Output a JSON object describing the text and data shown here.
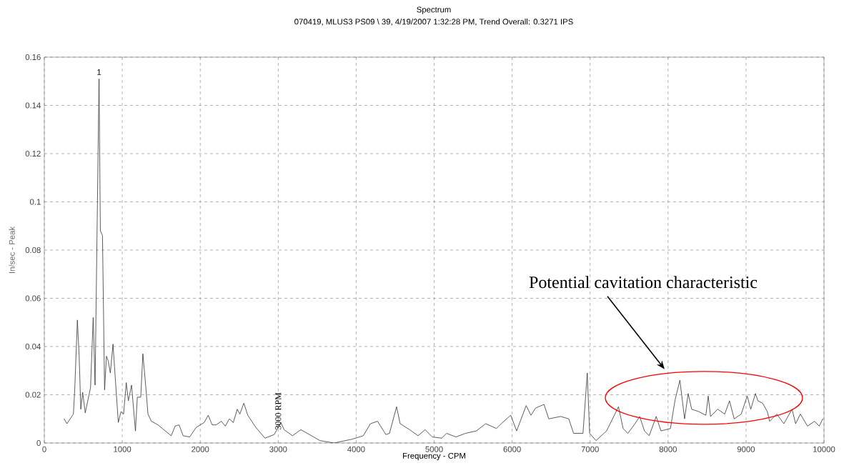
{
  "chart_data": {
    "type": "line",
    "title": "Spectrum",
    "subtitle": "070419, MLUS3 PS09 \\ 39, 4/19/2007 1:32:28 PM, Trend Overall: 0.3271 IPS",
    "xlabel": "Frequency - CPM",
    "ylabel": "In/sec - Peak",
    "series": [
      {
        "color": "#333333",
        "x": [
          254,
          290,
          373,
          390,
          424,
          447,
          468,
          492,
          525,
          593,
          627,
          651,
          702,
          719,
          746,
          773,
          797,
          820,
          847,
          881,
          908,
          949,
          983,
          1017,
          1051,
          1078,
          1119,
          1136,
          1169,
          1193,
          1237,
          1264,
          1305,
          1329,
          1373,
          1458,
          1627,
          1678,
          1729,
          1780,
          1864,
          1949,
          2051,
          2102,
          2153,
          2203,
          2271,
          2322,
          2373,
          2424,
          2475,
          2508,
          2559,
          2610,
          2712,
          2830,
          2949,
          3034,
          3076,
          3183,
          3290,
          3427,
          3534,
          3716,
          3939,
          4091,
          4183,
          4274,
          4381,
          4427,
          4518,
          4564,
          4686,
          4793,
          4884,
          4976,
          5098,
          5159,
          5280,
          5402,
          5540,
          5662,
          5799,
          5860,
          5982,
          6058,
          6180,
          6241,
          6302,
          6409,
          6470,
          6622,
          6727,
          6788,
          6909,
          6964,
          6994,
          7076,
          7212,
          7318,
          7364,
          7424,
          7485,
          7576,
          7636,
          7697,
          7758,
          7848,
          7909,
          8030,
          8091,
          8152,
          8212,
          8258,
          8303,
          8394,
          8485,
          8515,
          8545,
          8636,
          8727,
          8788,
          8848,
          8939,
          9015,
          9061,
          9121,
          9152,
          9212,
          9273,
          9303,
          9394,
          9485,
          9591,
          9636,
          9697,
          9788,
          9879,
          9939,
          9985
        ],
        "values": [
          0.01,
          0.008,
          0.012,
          0.022,
          0.051,
          0.036,
          0.014,
          0.021,
          0.0125,
          0.023,
          0.052,
          0.024,
          0.151,
          0.088,
          0.086,
          0.022,
          0.036,
          0.034,
          0.029,
          0.041,
          0.028,
          0.0085,
          0.013,
          0.012,
          0.025,
          0.0175,
          0.024,
          0.0175,
          0.005,
          0.019,
          0.019,
          0.037,
          0.022,
          0.012,
          0.009,
          0.0075,
          0.003,
          0.007,
          0.0075,
          0.003,
          0.0025,
          0.0065,
          0.0085,
          0.0115,
          0.0075,
          0.0075,
          0.009,
          0.007,
          0.01,
          0.0085,
          0.014,
          0.012,
          0.0165,
          0.0115,
          0.0065,
          0.002,
          0.0035,
          0.0085,
          0.0055,
          0.003,
          0.0055,
          0.003,
          0.001,
          0.0,
          0.0015,
          0.003,
          0.008,
          0.009,
          0.0035,
          0.004,
          0.015,
          0.008,
          0.0055,
          0.003,
          0.0055,
          0.0025,
          0.002,
          0.004,
          0.0025,
          0.004,
          0.005,
          0.008,
          0.006,
          0.008,
          0.0115,
          0.005,
          0.0155,
          0.0115,
          0.0145,
          0.016,
          0.01,
          0.011,
          0.01,
          0.004,
          0.004,
          0.029,
          0.004,
          0.001,
          0.005,
          0.012,
          0.015,
          0.006,
          0.004,
          0.008,
          0.011,
          0.005,
          0.003,
          0.011,
          0.005,
          0.006,
          0.018,
          0.026,
          0.01,
          0.0205,
          0.014,
          0.013,
          0.0115,
          0.0195,
          0.011,
          0.014,
          0.012,
          0.0175,
          0.01,
          0.012,
          0.0195,
          0.014,
          0.0205,
          0.0175,
          0.0165,
          0.013,
          0.009,
          0.012,
          0.008,
          0.014,
          0.008,
          0.012,
          0.007,
          0.009,
          0.007,
          0.01
        ]
      }
    ],
    "xlim": [
      0,
      10000
    ],
    "xticks": [
      0,
      1000,
      2000,
      3000,
      4000,
      5000,
      6000,
      7000,
      8000,
      9000,
      10000
    ],
    "ylim": [
      0,
      0.16
    ],
    "yticks": [
      0,
      0.02,
      0.04,
      0.06,
      0.08,
      0.1,
      0.12,
      0.14,
      0.16
    ],
    "grid": true,
    "annotations": [
      {
        "text": "1",
        "x": 702,
        "y": 0.151
      },
      {
        "text": "3000 RPM",
        "x": 3000,
        "y": 0.005
      },
      "Potential cavitation characteristic"
    ]
  }
}
